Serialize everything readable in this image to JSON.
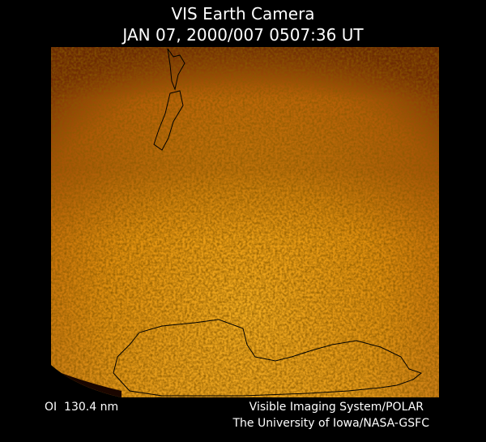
{
  "header": {
    "title": "VIS Earth Camera",
    "timestamp": "JAN 07, 2000/007 0507:36 UT"
  },
  "footer": {
    "filter": "OI  130.4 nm",
    "instrument": "Visible Imaging System/POLAR",
    "institution": "The University of Iowa/NASA-GSFC"
  }
}
